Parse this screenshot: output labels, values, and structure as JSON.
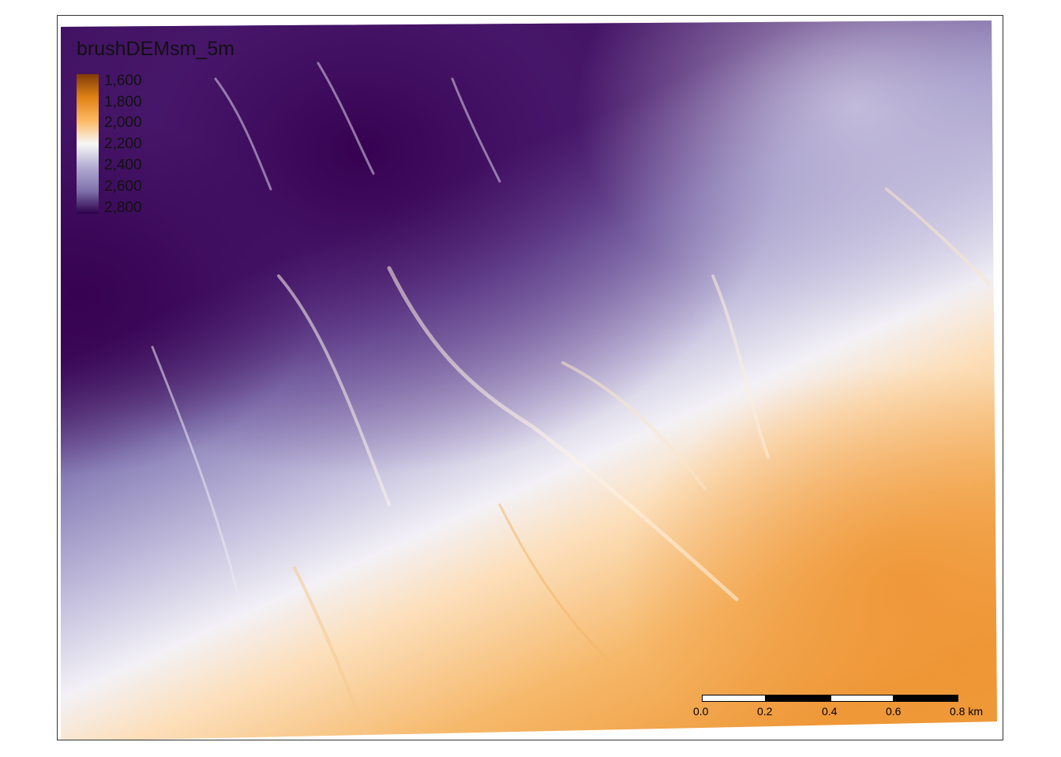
{
  "map": {
    "legend": {
      "title": "brushDEMsm_5m",
      "labels": [
        "1,600",
        "1,800",
        "2,000",
        "2,200",
        "2,400",
        "2,600",
        "2,800"
      ],
      "colors": [
        "#7f3b08",
        "#e08214",
        "#fdb863",
        "#f7f7f7",
        "#b2abd2",
        "#8073ac",
        "#2d004b"
      ]
    },
    "scale_bar": {
      "labels": [
        "0.0",
        "0.2",
        "0.4",
        "0.6"
      ],
      "last_label": "0.8 km"
    },
    "frame_color": "#333333"
  }
}
